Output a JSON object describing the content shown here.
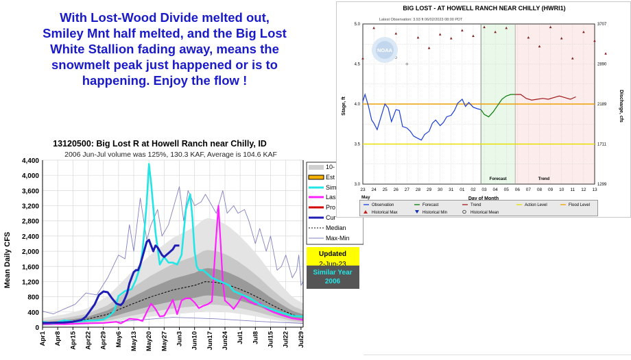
{
  "headline": [
    "With Lost-Wood Divide melted out,",
    "Smiley Mnt half melted, and the Big Lost",
    "White Stallion fading away, means the",
    "snowmelt peak just happened or is to",
    "happening. Enjoy the flow !"
  ],
  "colors": {
    "headline": "#1a1ac8",
    "current": "#1e1eb4",
    "similar": "#22e6e6",
    "last": "#ff20ff",
    "observation": "#1a3cd8",
    "forecast": "#0a7a0a",
    "trend": "#a01818",
    "action_level": "#e8e000",
    "flood_level": "#f0a000"
  },
  "chart_data": [
    {
      "type": "area",
      "title": "13120500: Big Lost R at Howell Ranch near Chilly, ID",
      "subtitle": "2006 Jun-Jul volume was 125%, 130.3 KAF, Average is 104.6 KAF",
      "ylabel": "Mean Daily CFS",
      "xlabel": "",
      "ylim": [
        0,
        4400
      ],
      "yticks": [
        "0",
        "400",
        "800",
        "1,200",
        "1,600",
        "2,000",
        "2,400",
        "2,800",
        "3,200",
        "3,600",
        "4,000",
        "4,400"
      ],
      "xticks": [
        "Apr1",
        "Apr8",
        "Apr15",
        "Apr22",
        "Apr29",
        "May6",
        "May13",
        "May20",
        "May27",
        "Jun3",
        "Jun10",
        "Jun17",
        "Jun24",
        "Jul1",
        "Jul8",
        "Jul15",
        "Jul22",
        "Jul29"
      ],
      "grid": true,
      "legend_position": "right",
      "legend": [
        "10-",
        "Est",
        "Sim",
        "Las",
        "Pro",
        "Cur",
        "Median",
        "Max-Min"
      ],
      "updated_label": "Updated",
      "updated_date": "2-Jun-23",
      "similar_year_label": "Similar Year",
      "similar_year": "2006",
      "series": [
        {
          "name": "Cur",
          "day": [
            0,
            5,
            10,
            14,
            18,
            20,
            22,
            24,
            26,
            28,
            30,
            32,
            34,
            35,
            36,
            37,
            38,
            39,
            40,
            41,
            42,
            43,
            44,
            45,
            46,
            47,
            48,
            49,
            50,
            51,
            52,
            53,
            54,
            55,
            56,
            57,
            58,
            59,
            60,
            61,
            62,
            63
          ],
          "values": [
            110,
            115,
            120,
            140,
            190,
            280,
            440,
            600,
            850,
            940,
            920,
            760,
            620,
            600,
            580,
            640,
            760,
            900,
            1150,
            1300,
            1450,
            1500,
            1500,
            1650,
            1850,
            2050,
            2250,
            2300,
            2150,
            2000,
            2150,
            2100,
            2000,
            1900,
            1850,
            1900,
            1950,
            2000,
            2050,
            2150,
            2150,
            2150
          ]
        },
        {
          "name": "Sim",
          "day": [
            0,
            5,
            10,
            15,
            20,
            25,
            28,
            30,
            33,
            35,
            38,
            41,
            43,
            45,
            46,
            47,
            48,
            49,
            50,
            52,
            54,
            56,
            58,
            60,
            62,
            64,
            66,
            68,
            69,
            70,
            71,
            72,
            74,
            76,
            78,
            80,
            82,
            84,
            86,
            88,
            90,
            92,
            95,
            100,
            105,
            110,
            115,
            120
          ],
          "values": [
            140,
            100,
            180,
            140,
            170,
            180,
            200,
            260,
            420,
            820,
            950,
            1000,
            1250,
            1600,
            2000,
            2600,
            3300,
            4300,
            3800,
            2500,
            1650,
            1850,
            1700,
            1700,
            1650,
            1900,
            3100,
            3500,
            2900,
            2000,
            1600,
            1500,
            1500,
            1400,
            1300,
            1250,
            1200,
            1150,
            1100,
            950,
            900,
            850,
            780,
            600,
            480,
            380,
            300,
            280
          ]
        },
        {
          "name": "Las",
          "day": [
            0,
            10,
            20,
            28,
            34,
            36,
            40,
            44,
            46,
            48,
            50,
            52,
            54,
            56,
            58,
            60,
            62,
            64,
            66,
            68,
            70,
            72,
            74,
            76,
            78,
            80,
            81,
            82,
            83,
            84,
            86,
            88,
            90,
            92,
            95,
            98,
            100,
            103,
            106,
            110,
            115,
            120
          ],
          "values": [
            90,
            80,
            100,
            110,
            140,
            100,
            220,
            200,
            160,
            400,
            620,
            480,
            280,
            300,
            500,
            720,
            340,
            700,
            760,
            760,
            650,
            500,
            560,
            600,
            680,
            2400,
            3200,
            2200,
            1200,
            700,
            600,
            480,
            640,
            820,
            680,
            600,
            640,
            480,
            400,
            320,
            230,
            190
          ]
        },
        {
          "name": "Median",
          "day": [
            0,
            10,
            20,
            30,
            40,
            50,
            60,
            70,
            75,
            80,
            85,
            90,
            95,
            100,
            105,
            110,
            115,
            120
          ],
          "values": [
            100,
            140,
            200,
            340,
            580,
            800,
            980,
            1100,
            1200,
            1180,
            1120,
            1020,
            900,
            760,
            600,
            460,
            330,
            260
          ]
        },
        {
          "name": "Max-Min",
          "day": [
            0,
            5,
            10,
            15,
            20,
            25,
            30,
            35,
            38,
            40,
            42,
            45,
            48,
            50,
            53,
            55,
            58,
            60,
            63,
            65,
            67,
            70,
            73,
            75,
            78,
            80,
            83,
            85,
            88,
            90,
            93,
            95,
            98,
            100,
            103,
            105,
            108,
            110,
            112,
            115,
            117,
            118,
            119,
            120
          ],
          "values": [
            420,
            350,
            480,
            600,
            900,
            850,
            1300,
            1900,
            1800,
            2700,
            2000,
            3400,
            2300,
            2700,
            3100,
            2400,
            2700,
            3100,
            3700,
            2800,
            3600,
            3200,
            3300,
            3500,
            3200,
            3000,
            3600,
            3000,
            3200,
            3000,
            3100,
            2800,
            2200,
            2600,
            2000,
            2400,
            1500,
            1600,
            1900,
            1300,
            1500,
            1900,
            1100,
            1200
          ]
        }
      ]
    },
    {
      "type": "line",
      "title": "BIG LOST - AT HOWELL RANCH NEAR CHILLY  (HWRI1)",
      "subtitle": "Latest Observation: 3.93 ft 06/02/2023 08:00 PDT",
      "watermark": "NOAA",
      "ylabel": "Stage, ft",
      "ylabel_right": "Discharge, cfs",
      "xlabel": "Day of Month",
      "ylim": [
        3.0,
        5.0
      ],
      "yticks": [
        "3.0",
        "3.5",
        "4.0",
        "4.5",
        "5.0"
      ],
      "yticks_right": [
        "1299",
        "1711",
        "2189",
        "2890",
        "3707"
      ],
      "xticks": [
        "23",
        "24",
        "25",
        "26",
        "27",
        "28",
        "29",
        "30",
        "31",
        "01",
        "02",
        "03",
        "04",
        "05",
        "06",
        "07",
        "08",
        "09",
        "10",
        "11",
        "12",
        "13"
      ],
      "month_label": "May",
      "region_labels": [
        "Forecast",
        "Trend"
      ],
      "action_level": 3.5,
      "flood_level": 4.0,
      "grid": true,
      "legend_position": "bottom",
      "legend": [
        "Observation",
        "Forecast",
        "Trend",
        "Action Level",
        "Flood Level",
        "Historical Max",
        "Historical Min",
        "Historical Mean"
      ],
      "series": [
        {
          "name": "Observation",
          "day": [
            0,
            0.2,
            0.5,
            0.8,
            1.0,
            1.3,
            1.6,
            2.0,
            2.3,
            2.6,
            3.0,
            3.3,
            3.6,
            4.0,
            4.3,
            4.6,
            5.0,
            5.3,
            5.6,
            6.0,
            6.3,
            6.6,
            7.0,
            7.3,
            7.6,
            8.0,
            8.3,
            8.6,
            9.0,
            9.3,
            9.6,
            10.0,
            10.4,
            10.7
          ],
          "values": [
            4.03,
            4.12,
            3.98,
            3.8,
            3.76,
            3.68,
            3.82,
            4.0,
            3.95,
            3.78,
            3.93,
            3.92,
            3.72,
            3.7,
            3.66,
            3.6,
            3.57,
            3.55,
            3.62,
            3.66,
            3.76,
            3.8,
            3.73,
            3.77,
            3.84,
            3.86,
            3.92,
            4.01,
            4.06,
            3.97,
            4.02,
            3.96,
            3.94,
            3.93
          ]
        },
        {
          "name": "Forecast",
          "day": [
            10.7,
            11.0,
            11.4,
            11.8,
            12.2,
            12.6,
            13.0,
            13.4,
            13.8
          ],
          "values": [
            3.93,
            3.87,
            3.84,
            3.9,
            3.98,
            4.06,
            4.1,
            4.12,
            4.12
          ]
        },
        {
          "name": "Trend",
          "day": [
            13.8,
            14.3,
            14.8,
            15.3,
            15.8,
            16.3,
            16.8,
            17.3,
            17.8,
            18.3,
            18.8,
            19.3
          ],
          "values": [
            4.12,
            4.12,
            4.07,
            4.05,
            4.06,
            4.07,
            4.06,
            4.08,
            4.1,
            4.08,
            4.06,
            4.09
          ]
        },
        {
          "name": "Historical Max",
          "day": [
            0,
            1,
            3,
            5,
            6,
            7,
            8,
            9,
            10,
            11,
            12,
            13,
            15,
            16,
            17,
            18,
            19,
            20,
            21,
            22
          ],
          "values": [
            4.57,
            4.95,
            4.88,
            4.83,
            4.7,
            4.87,
            4.82,
            4.92,
            4.85,
            4.96,
            4.9,
            4.95,
            4.83,
            4.72,
            4.96,
            4.82,
            4.57,
            4.9,
            4.79,
            4.63
          ]
        },
        {
          "name": "Historical Min",
          "day": [],
          "values": []
        },
        {
          "name": "Historical Mean",
          "day": [
            2,
            3,
            4
          ],
          "values": [
            4.61,
            4.58,
            4.5
          ]
        }
      ]
    }
  ]
}
